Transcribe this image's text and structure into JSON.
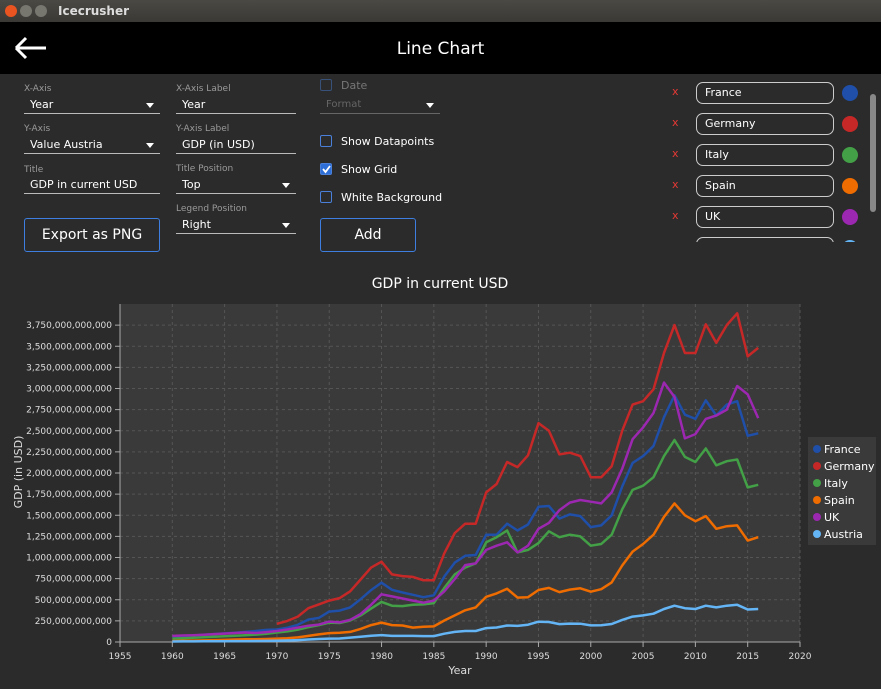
{
  "window_title": "Icecrusher",
  "header": {
    "title": "Line Chart"
  },
  "form": {
    "x_axis": {
      "label": "X-Axis",
      "value": "Year"
    },
    "y_axis": {
      "label": "Y-Axis",
      "value": "Value Austria"
    },
    "title": {
      "label": "Title",
      "value": "GDP in current USD"
    },
    "x_axis_label": {
      "label": "X-Axis Label",
      "value": "Year"
    },
    "y_axis_label": {
      "label": "Y-Axis Label",
      "value": "GDP (in USD)"
    },
    "title_position": {
      "label": "Title Position",
      "value": "Top"
    },
    "legend_position": {
      "label": "Legend Position",
      "value": "Right"
    },
    "date": {
      "label": "Date",
      "checked": false
    },
    "format": {
      "label": "Format"
    },
    "show_datapoints": {
      "label": "Show Datapoints",
      "checked": false
    },
    "show_grid": {
      "label": "Show Grid",
      "checked": true
    },
    "white_background": {
      "label": "White Background",
      "checked": false
    },
    "export_button": "Export as PNG",
    "add_button": "Add",
    "remove_label": "x"
  },
  "chart_data": {
    "type": "line",
    "title": "GDP in current USD",
    "xlabel": "Year",
    "ylabel": "GDP (in USD)",
    "x": [
      1960,
      1961,
      1962,
      1963,
      1964,
      1965,
      1966,
      1967,
      1968,
      1969,
      1970,
      1971,
      1972,
      1973,
      1974,
      1975,
      1976,
      1977,
      1978,
      1979,
      1980,
      1981,
      1982,
      1983,
      1984,
      1985,
      1986,
      1987,
      1988,
      1989,
      1990,
      1991,
      1992,
      1993,
      1994,
      1995,
      1996,
      1997,
      1998,
      1999,
      2000,
      2001,
      2002,
      2003,
      2004,
      2005,
      2006,
      2007,
      2008,
      2009,
      2010,
      2011,
      2012,
      2013,
      2014,
      2015,
      2016
    ],
    "series": [
      {
        "name": "France",
        "color": "#1f4fa8",
        "values": [
          62000000000.0,
          67000000000.0,
          76000000000.0,
          85000000000.0,
          94000000000.0,
          102000000000.0,
          110000000000.0,
          119000000000.0,
          130000000000.0,
          143000000000.0,
          148000000000.0,
          169000000000.0,
          204000000000.0,
          265000000000.0,
          285000000000.0,
          360000000000.0,
          372000000000.0,
          410000000000.0,
          506000000000.0,
          614000000000.0,
          702000000000.0,
          618000000000.0,
          586000000000.0,
          558000000000.0,
          530000000000.0,
          553000000000.0,
          775000000000.0,
          940000000000.0,
          1020000000000.0,
          1030000000000.0,
          1270000000000.0,
          1270000000000.0,
          1400000000000.0,
          1320000000000.0,
          1390000000000.0,
          1600000000000.0,
          1610000000000.0,
          1460000000000.0,
          1510000000000.0,
          1490000000000.0,
          1360000000000.0,
          1380000000000.0,
          1500000000000.0,
          1840000000000.0,
          2120000000000.0,
          2200000000000.0,
          2320000000000.0,
          2660000000000.0,
          2920000000000.0,
          2690000000000.0,
          2640000000000.0,
          2860000000000.0,
          2680000000000.0,
          2810000000000.0,
          2850000000000.0,
          2440000000000.0,
          2470000000000.0
        ]
      },
      {
        "name": "Germany",
        "color": "#c62828",
        "values": [
          null,
          null,
          null,
          null,
          null,
          null,
          null,
          null,
          null,
          null,
          215000000000.0,
          250000000000.0,
          300000000000.0,
          400000000000.0,
          445000000000.0,
          490000000000.0,
          520000000000.0,
          600000000000.0,
          740000000000.0,
          880000000000.0,
          950000000000.0,
          800000000000.0,
          780000000000.0,
          770000000000.0,
          730000000000.0,
          730000000000.0,
          1050000000000.0,
          1290000000000.0,
          1400000000000.0,
          1400000000000.0,
          1770000000000.0,
          1870000000000.0,
          2130000000000.0,
          2070000000000.0,
          2210000000000.0,
          2590000000000.0,
          2500000000000.0,
          2220000000000.0,
          2240000000000.0,
          2200000000000.0,
          1950000000000.0,
          1950000000000.0,
          2080000000000.0,
          2500000000000.0,
          2810000000000.0,
          2850000000000.0,
          2990000000000.0,
          3420000000000.0,
          3750000000000.0,
          3420000000000.0,
          3420000000000.0,
          3760000000000.0,
          3540000000000.0,
          3750000000000.0,
          3890000000000.0,
          3380000000000.0,
          3480000000000.0
        ]
      },
      {
        "name": "Italy",
        "color": "#43a047",
        "values": [
          40000000000.0,
          45000000000.0,
          50000000000.0,
          56000000000.0,
          62000000000.0,
          67000000000.0,
          73000000000.0,
          80000000000.0,
          87000000000.0,
          97000000000.0,
          113000000000.0,
          125000000000.0,
          145000000000.0,
          175000000000.0,
          200000000000.0,
          230000000000.0,
          225000000000.0,
          255000000000.0,
          315000000000.0,
          395000000000.0,
          475000000000.0,
          430000000000.0,
          425000000000.0,
          440000000000.0,
          445000000000.0,
          460000000000.0,
          640000000000.0,
          800000000000.0,
          880000000000.0,
          930000000000.0,
          1180000000000.0,
          1240000000000.0,
          1320000000000.0,
          1060000000000.0,
          1090000000000.0,
          1170000000000.0,
          1310000000000.0,
          1240000000000.0,
          1270000000000.0,
          1250000000000.0,
          1140000000000.0,
          1160000000000.0,
          1270000000000.0,
          1570000000000.0,
          1800000000000.0,
          1850000000000.0,
          1950000000000.0,
          2200000000000.0,
          2390000000000.0,
          2190000000000.0,
          2130000000000.0,
          2290000000000.0,
          2090000000000.0,
          2140000000000.0,
          2160000000000.0,
          1830000000000.0,
          1860000000000.0
        ]
      },
      {
        "name": "Spain",
        "color": "#ef6c00",
        "values": [
          12000000000.0,
          14000000000.0,
          16000000000.0,
          19000000000.0,
          22000000000.0,
          25000000000.0,
          29000000000.0,
          32000000000.0,
          32000000000.0,
          35000000000.0,
          40000000000.0,
          45000000000.0,
          55000000000.0,
          72000000000.0,
          90000000000.0,
          105000000000.0,
          110000000000.0,
          120000000000.0,
          155000000000.0,
          200000000000.0,
          230000000000.0,
          200000000000.0,
          195000000000.0,
          170000000000.0,
          180000000000.0,
          185000000000.0,
          255000000000.0,
          315000000000.0,
          375000000000.0,
          410000000000.0,
          535000000000.0,
          575000000000.0,
          630000000000.0,
          525000000000.0,
          530000000000.0,
          615000000000.0,
          640000000000.0,
          590000000000.0,
          620000000000.0,
          635000000000.0,
          595000000000.0,
          625000000000.0,
          705000000000.0,
          905000000000.0,
          1070000000000.0,
          1160000000000.0,
          1270000000000.0,
          1480000000000.0,
          1640000000000.0,
          1500000000000.0,
          1430000000000.0,
          1490000000000.0,
          1340000000000.0,
          1370000000000.0,
          1380000000000.0,
          1200000000000.0,
          1240000000000.0
        ]
      },
      {
        "name": "UK",
        "color": "#9c27b0",
        "values": [
          72000000000.0,
          77000000000.0,
          81000000000.0,
          86000000000.0,
          94000000000.0,
          100000000000.0,
          107000000000.0,
          112000000000.0,
          107000000000.0,
          117000000000.0,
          130000000000.0,
          148000000000.0,
          170000000000.0,
          193000000000.0,
          206000000000.0,
          242000000000.0,
          232000000000.0,
          262000000000.0,
          330000000000.0,
          440000000000.0,
          565000000000.0,
          540000000000.0,
          515000000000.0,
          490000000000.0,
          465000000000.0,
          490000000000.0,
          600000000000.0,
          745000000000.0,
          910000000000.0,
          930000000000.0,
          1090000000000.0,
          1140000000000.0,
          1180000000000.0,
          1060000000000.0,
          1140000000000.0,
          1340000000000.0,
          1410000000000.0,
          1560000000000.0,
          1650000000000.0,
          1680000000000.0,
          1660000000000.0,
          1640000000000.0,
          1770000000000.0,
          2050000000000.0,
          2400000000000.0,
          2540000000000.0,
          2710000000000.0,
          3070000000000.0,
          2900000000000.0,
          2410000000000.0,
          2460000000000.0,
          2640000000000.0,
          2680000000000.0,
          2750000000000.0,
          3030000000000.0,
          2930000000000.0,
          2650000000000.0
        ]
      },
      {
        "name": "Austria",
        "color": "#64b5f6",
        "values": [
          6000000000.0,
          7000000000.0,
          7000000000.0,
          8000000000.0,
          9000000000.0,
          10000000000.0,
          11000000000.0,
          11000000000.0,
          12000000000.0,
          13000000000.0,
          15000000000.0,
          18000000000.0,
          22000000000.0,
          29000000000.0,
          35000000000.0,
          40000000000.0,
          42000000000.0,
          52000000000.0,
          63000000000.0,
          75000000000.0,
          82000000000.0,
          72000000000.0,
          72000000000.0,
          72000000000.0,
          70000000000.0,
          70000000000.0,
          98000000000.0,
          120000000000.0,
          130000000000.0,
          130000000000.0,
          165000000000.0,
          172000000000.0,
          195000000000.0,
          190000000000.0,
          205000000000.0,
          240000000000.0,
          237000000000.0,
          212000000000.0,
          218000000000.0,
          217000000000.0,
          197000000000.0,
          198000000000.0,
          213000000000.0,
          262000000000.0,
          300000000000.0,
          315000000000.0,
          335000000000.0,
          390000000000.0,
          430000000000.0,
          400000000000.0,
          390000000000.0,
          430000000000.0,
          410000000000.0,
          430000000000.0,
          440000000000.0,
          385000000000.0,
          390000000000.0
        ]
      }
    ],
    "xlim": [
      1955,
      2020
    ],
    "xticks": [
      1955,
      1960,
      1965,
      1970,
      1975,
      1980,
      1985,
      1990,
      1995,
      2000,
      2005,
      2010,
      2015,
      2020
    ],
    "ylim": [
      0,
      4000000000000.0
    ],
    "yticks": [
      0,
      {
        "value": 250000000000.0,
        "label": "250,000,000,000"
      },
      {
        "value": 500000000000.0,
        "label": "500,000,000,000"
      },
      {
        "value": 750000000000.0,
        "label": "750,000,000,000"
      },
      {
        "value": 1000000000000.0,
        "label": "1,000,000,000,000"
      },
      {
        "value": 1250000000000.0,
        "label": "1,250,000,000,000"
      },
      {
        "value": 1500000000000.0,
        "label": "1,500,000,000,000"
      },
      {
        "value": 1750000000000.0,
        "label": "1,750,000,000,000"
      },
      {
        "value": 2000000000000.0,
        "label": "2,000,000,000,000"
      },
      {
        "value": 2250000000000.0,
        "label": "2,250,000,000,000"
      },
      {
        "value": 2500000000000.0,
        "label": "2,500,000,000,000"
      },
      {
        "value": 2750000000000.0,
        "label": "2,750,000,000,000"
      },
      {
        "value": 3000000000000.0,
        "label": "3,000,000,000,000"
      },
      {
        "value": 3250000000000.0,
        "label": "3,250,000,000,000"
      },
      {
        "value": 3500000000000.0,
        "label": "3,500,000,000,000"
      },
      {
        "value": 3750000000000.0,
        "label": "3,750,000,000,000"
      }
    ],
    "grid": true,
    "legend": "right"
  }
}
